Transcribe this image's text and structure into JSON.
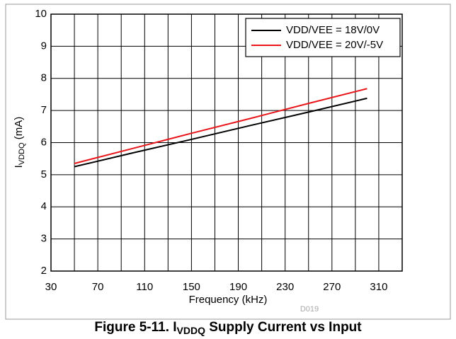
{
  "chart_data": {
    "type": "line",
    "title_parts": [
      "Figure 5-11. I",
      "VDDQ",
      " Supply Current vs Input"
    ],
    "y_label_parts": [
      "I",
      "VDDQ",
      " (mA)"
    ],
    "x_label": "Frequency (kHz)",
    "note": "D019",
    "x": [
      50,
      100,
      150,
      200,
      250,
      300
    ],
    "series": [
      {
        "name": "VDD/VEE = 18V/0V",
        "color": "#000000",
        "values": [
          5.25,
          5.68,
          6.1,
          6.53,
          6.95,
          7.38
        ]
      },
      {
        "name": "VDD/VEE = 20V/-5V",
        "color": "#e8161b",
        "values": [
          5.35,
          5.82,
          6.29,
          6.75,
          7.22,
          7.68
        ]
      }
    ],
    "xlim": [
      30,
      330
    ],
    "xticks": [
      30,
      70,
      110,
      150,
      190,
      230,
      270,
      310
    ],
    "x_minor_ticks": [
      50,
      90,
      130,
      170,
      210,
      250,
      290,
      330
    ],
    "ylim": [
      2,
      10
    ],
    "yticks": [
      2,
      3,
      4,
      5,
      6,
      7,
      8,
      9,
      10
    ],
    "grid": true,
    "legend": "upper right"
  }
}
